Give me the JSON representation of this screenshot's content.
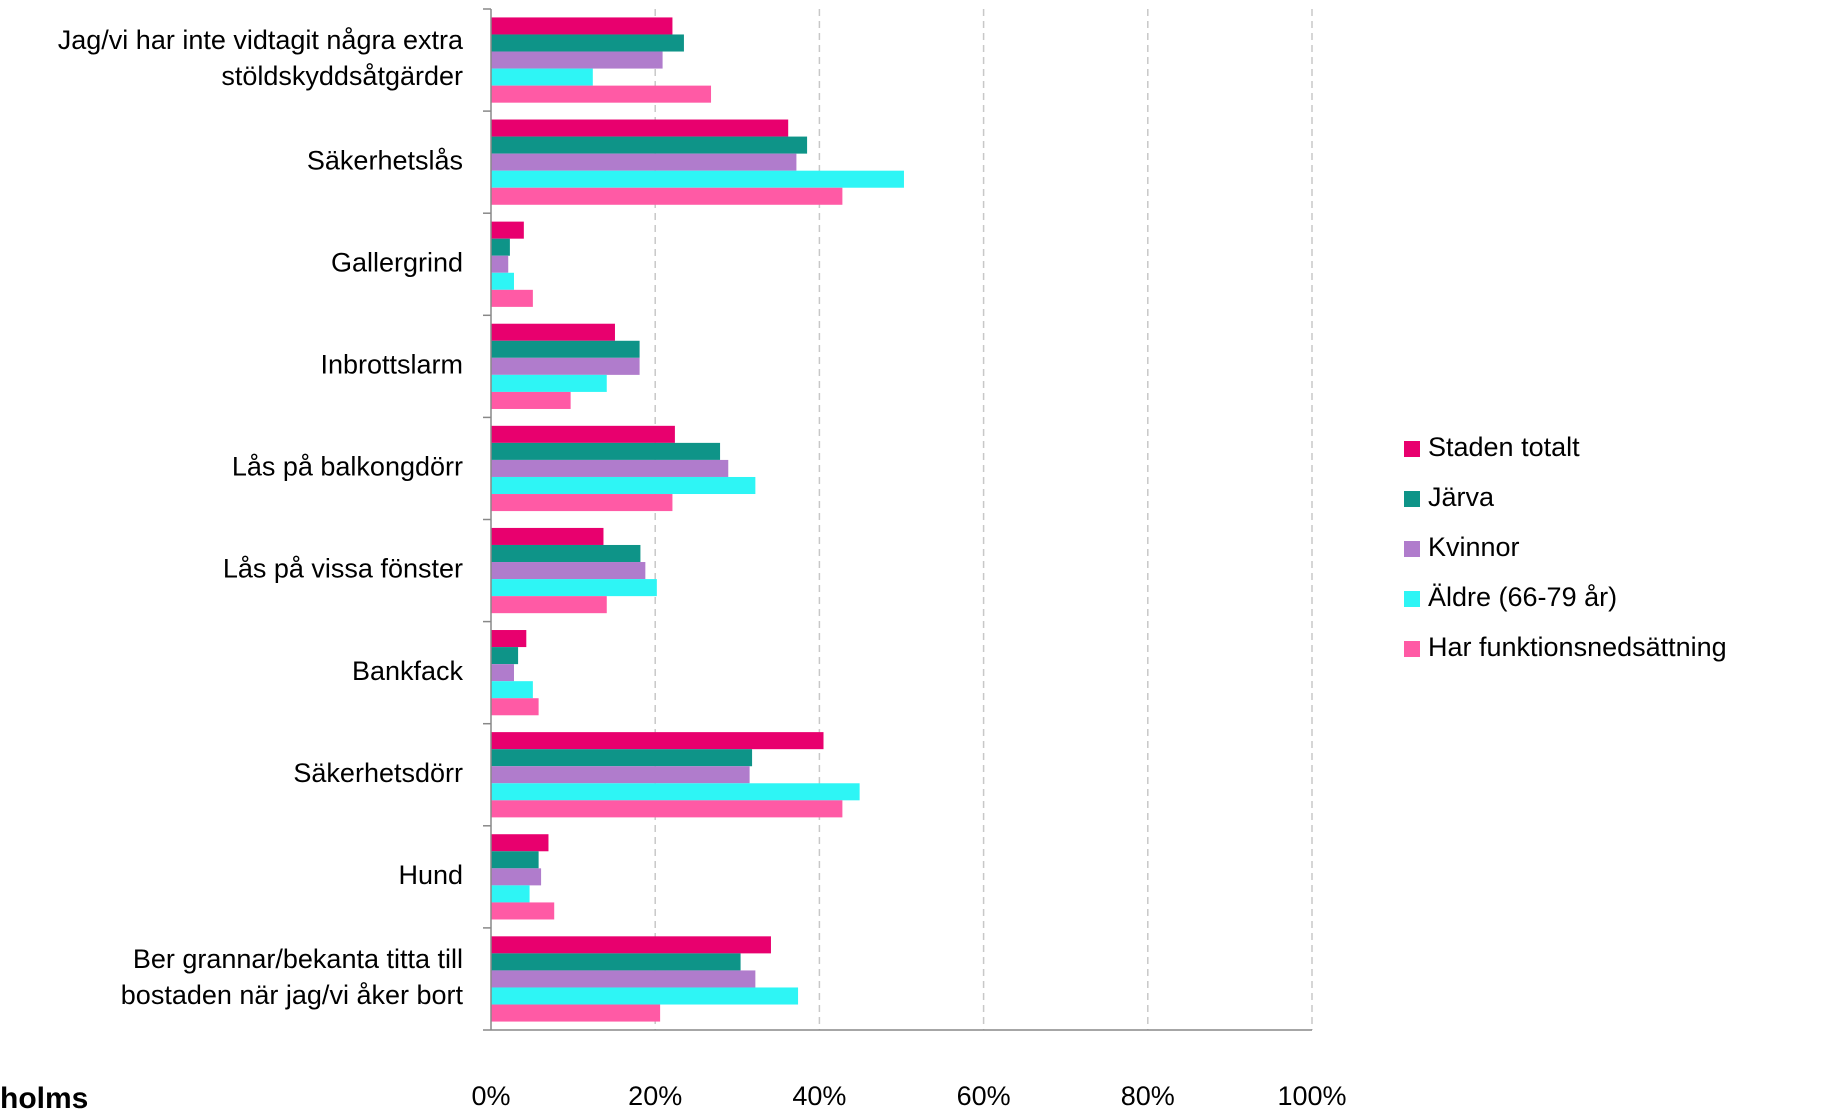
{
  "chart_data": {
    "type": "barh",
    "categories": [
      "Jag/vi har inte vidtagit några extra\nstöldskyddsåtgärder",
      "Säkerhetslås",
      "Gallergrind",
      "Inbrottslarm",
      "Lås på balkongdörr",
      "Lås på vissa fönster",
      "Bankfack",
      "Säkerhetsdörr",
      "Hund",
      "Ber grannar/bekanta titta till\nbostaden när jag/vi åker bort"
    ],
    "series": [
      {
        "name": "Staden totalt",
        "color": "#e8006e",
        "values": [
          22.1,
          36.2,
          4.0,
          15.1,
          22.4,
          13.7,
          4.3,
          40.5,
          7.0,
          34.1
        ]
      },
      {
        "name": "Järva",
        "color": "#0e9488",
        "values": [
          23.5,
          38.5,
          2.3,
          18.1,
          27.9,
          18.2,
          3.3,
          31.8,
          5.8,
          30.4
        ]
      },
      {
        "name": "Kvinnor",
        "color": "#b07ccc",
        "values": [
          20.9,
          37.2,
          2.1,
          18.1,
          28.9,
          18.8,
          2.8,
          31.5,
          6.1,
          32.2
        ]
      },
      {
        "name": "Äldre (66-79 år)",
        "color": "#2ef5f5",
        "values": [
          12.4,
          50.3,
          2.8,
          14.1,
          32.2,
          20.2,
          5.1,
          44.9,
          4.7,
          37.4
        ]
      },
      {
        "name": "Har funktionsnedsättning",
        "color": "#ff5aa5",
        "values": [
          26.8,
          42.8,
          5.1,
          9.7,
          22.1,
          14.1,
          5.8,
          42.8,
          7.7,
          20.6
        ]
      }
    ],
    "xlim": [
      0,
      100
    ],
    "xticks": [
      {
        "value": 0,
        "label": "0%"
      },
      {
        "value": 20,
        "label": "20%"
      },
      {
        "value": 40,
        "label": "40%"
      },
      {
        "value": 60,
        "label": "60%"
      },
      {
        "value": 80,
        "label": "80%"
      },
      {
        "value": 100,
        "label": "100%"
      }
    ],
    "grid": true,
    "legend": "right"
  },
  "logo_text": "holms"
}
